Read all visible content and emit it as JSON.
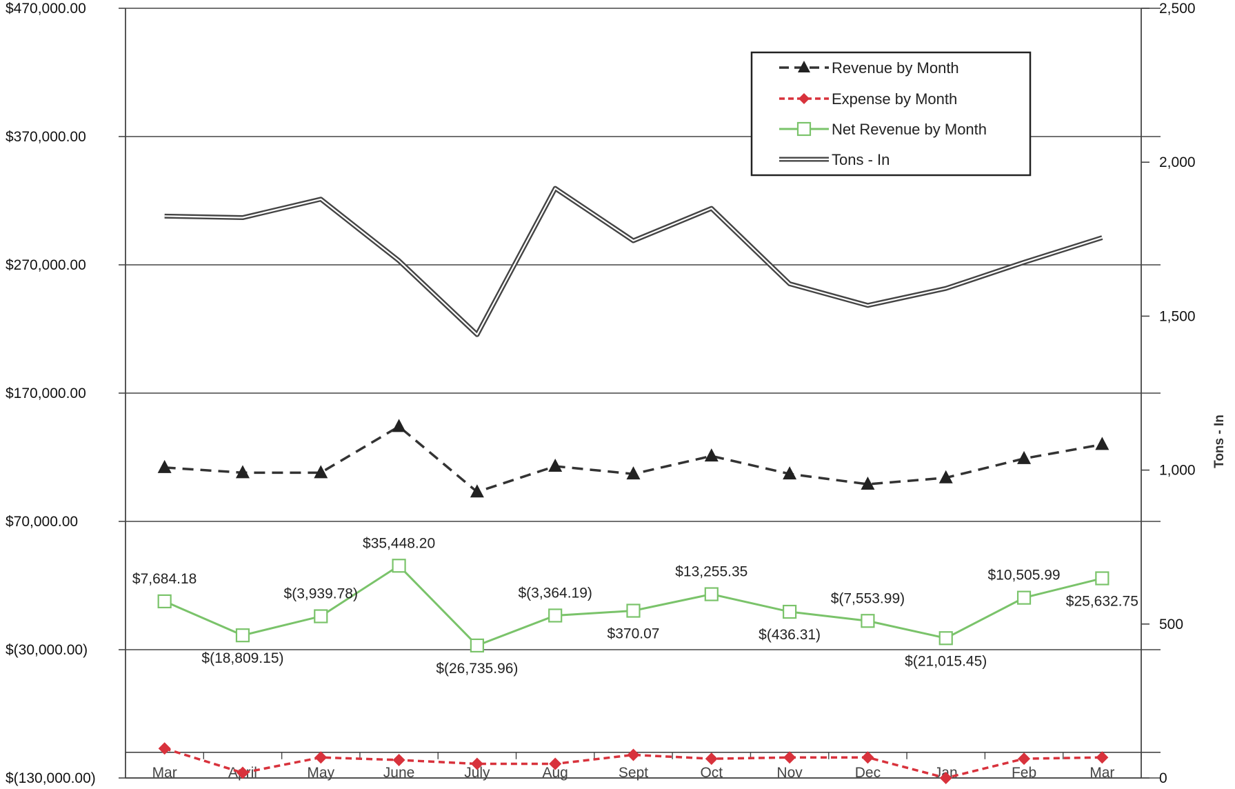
{
  "chart_data": {
    "type": "line",
    "title": "",
    "categories": [
      "Mar",
      "April",
      "May",
      "June",
      "July",
      "Aug",
      "Sept",
      "Oct",
      "Nov",
      "Dec",
      "Jan",
      "Feb",
      "Mar"
    ],
    "y_left": {
      "min": -130000,
      "max": 470000,
      "ticks": [
        -130000,
        -30000,
        70000,
        170000,
        270000,
        370000,
        470000
      ],
      "tick_labels": [
        "$(130,000.00)",
        "$(30,000.00)",
        "$70,000.00",
        "$170,000.00",
        "$270,000.00",
        "$370,000.00",
        "$470,000.00"
      ]
    },
    "y_right": {
      "label": "Tons - In",
      "min": 0,
      "max": 2500,
      "ticks": [
        0,
        500,
        1000,
        1500,
        2000,
        2500
      ],
      "tick_labels": [
        "0",
        "500",
        "1,000",
        "1,500",
        "2,000",
        "2,500"
      ]
    },
    "grid": true,
    "legend": {
      "position": "top-right",
      "entries": [
        "Revenue by Month",
        "Expense by Month",
        "Net Revenue by Month",
        "Tons - In"
      ]
    },
    "series": [
      {
        "name": "Revenue by Month",
        "axis": "left",
        "style": "dashed",
        "marker": "triangle",
        "color": "#333333",
        "values": [
          112000,
          108000,
          108000,
          144000,
          93000,
          113000,
          107000,
          121000,
          107000,
          99000,
          104000,
          119000,
          130000
        ]
      },
      {
        "name": "Expense by Month",
        "axis": "left",
        "style": "dashed",
        "marker": "diamond",
        "color": "#d8323c",
        "values": [
          -107000,
          -126000,
          -114000,
          -116000,
          -119000,
          -119000,
          -112000,
          -115000,
          -114000,
          -114000,
          -130000,
          -115000,
          -114000
        ]
      },
      {
        "name": "Net Revenue by Month",
        "axis": "left",
        "style": "solid",
        "marker": "square",
        "color": "#7ac36a",
        "values": [
          7684.18,
          -18809.15,
          -3939.78,
          35448.2,
          -26735.96,
          -3364.19,
          370.07,
          13255.35,
          -436.31,
          -7553.99,
          -21015.45,
          10505.99,
          25632.75
        ],
        "labels": [
          "$7,684.18",
          "$(18,809.15)",
          "$(3,939.78)",
          "$35,448.20",
          "$(26,735.96)",
          "$(3,364.19)",
          "$370.07",
          "$13,255.35",
          "$(436.31)",
          "$(7,553.99)",
          "$(21,015.45)",
          "$10,505.99",
          "$25,632.75"
        ]
      },
      {
        "name": "Tons - In",
        "axis": "right",
        "style": "double",
        "marker": "none",
        "color": "#444444",
        "values": [
          1825,
          1820,
          1880,
          1680,
          1440,
          1915,
          1745,
          1850,
          1605,
          1535,
          1590,
          1675,
          1755
        ]
      }
    ]
  }
}
